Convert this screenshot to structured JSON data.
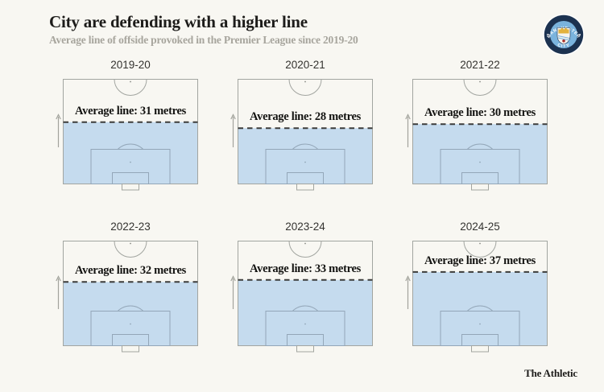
{
  "header": {
    "title": "City are defending with a higher line",
    "subtitle": "Average line of offside provoked in the Premier League since 2019-20",
    "badge_name": "Manchester City crest"
  },
  "footer": {
    "brand": "The Athletic"
  },
  "chart_data": {
    "type": "pitch-small-multiples",
    "title": "City are defending with a higher line",
    "subtitle": "Average line of offside provoked in the Premier League since 2019-20",
    "unit": "metres",
    "pitch_half_length_metres": 52.5,
    "layout": {
      "rows": 2,
      "cols": 3
    },
    "pitches": [
      {
        "season": "2019-20",
        "metres": 31,
        "label": "Average line: 31 metres"
      },
      {
        "season": "2020-21",
        "metres": 28,
        "label": "Average line: 28 metres"
      },
      {
        "season": "2021-22",
        "metres": 30,
        "label": "Average line: 30 metres"
      },
      {
        "season": "2022-23",
        "metres": 32,
        "label": "Average line: 32 metres"
      },
      {
        "season": "2023-24",
        "metres": 33,
        "label": "Average line: 33 metres"
      },
      {
        "season": "2024-25",
        "metres": 37,
        "label": "Average line: 37 metres"
      }
    ],
    "colors": {
      "background": "#f8f7f2",
      "fill_below_line": "#c5dbee",
      "dashed_line": "#3c3c3a",
      "pitch_outline": "#a2a5a0",
      "pitch_inner_lines": "#93a6b8",
      "goal_fill": "#f8f7f1",
      "arrow": "#a2a39c",
      "title_text": "#1d1c1a",
      "subtitle_text": "#a7a59d",
      "badge_navy": "#1c3250",
      "badge_sky": "#7ab3dd",
      "badge_gold": "#e3b23c",
      "badge_rose": "#a8322e"
    }
  }
}
